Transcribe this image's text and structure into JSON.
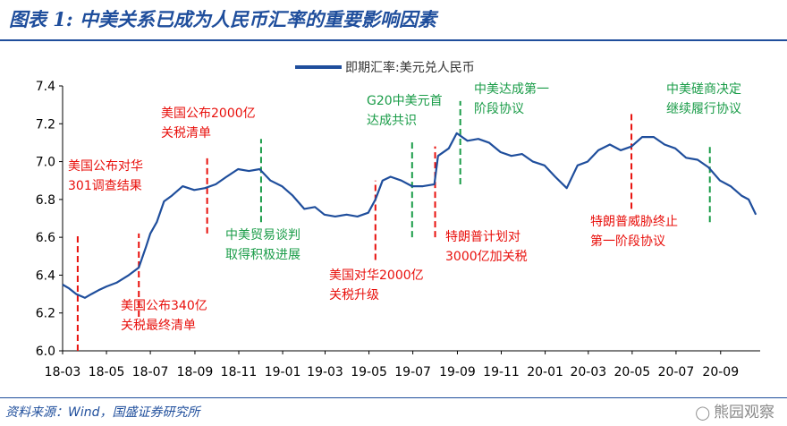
{
  "title": "图表 1:  中美关系已成为人民币汇率的重要影响因素",
  "source": "资料来源：Wind，国盛证券研究所",
  "watermark": "熊园观察",
  "colors": {
    "line": "#1f4e9c",
    "red": "#e8100c",
    "green": "#1a9c48",
    "title": "#1f4e9c"
  },
  "chart_data": {
    "type": "line",
    "legend": "即期汇率:美元兑人民币",
    "legend_position": "top-center",
    "grid": false,
    "ylim": [
      6.0,
      7.4
    ],
    "yticks": [
      "6.0",
      "6.2",
      "6.4",
      "6.6",
      "6.8",
      "7.0",
      "7.2",
      "7.4"
    ],
    "xticks": [
      "18-03",
      "18-05",
      "18-07",
      "18-09",
      "18-11",
      "19-01",
      "19-03",
      "19-05",
      "19-07",
      "19-09",
      "19-11",
      "20-01",
      "20-03",
      "20-05",
      "20-07",
      "20-09"
    ],
    "series": [
      {
        "name": "即期汇率:美元兑人民币",
        "x": [
          "2018-03-01",
          "2018-03-10",
          "2018-03-20",
          "2018-04-01",
          "2018-04-10",
          "2018-04-20",
          "2018-05-01",
          "2018-05-15",
          "2018-06-01",
          "2018-06-15",
          "2018-06-25",
          "2018-07-01",
          "2018-07-10",
          "2018-07-20",
          "2018-07-31",
          "2018-08-15",
          "2018-08-31",
          "2018-09-15",
          "2018-09-30",
          "2018-10-15",
          "2018-10-31",
          "2018-11-15",
          "2018-11-30",
          "2018-12-15",
          "2018-12-31",
          "2019-01-15",
          "2019-01-31",
          "2019-02-15",
          "2019-02-28",
          "2019-03-15",
          "2019-03-31",
          "2019-04-15",
          "2019-04-30",
          "2019-05-10",
          "2019-05-20",
          "2019-05-31",
          "2019-06-15",
          "2019-06-30",
          "2019-07-15",
          "2019-07-31",
          "2019-08-05",
          "2019-08-20",
          "2019-08-31",
          "2019-09-15",
          "2019-09-30",
          "2019-10-15",
          "2019-10-31",
          "2019-11-15",
          "2019-11-30",
          "2019-12-15",
          "2019-12-31",
          "2020-01-15",
          "2020-01-31",
          "2020-02-15",
          "2020-02-29",
          "2020-03-15",
          "2020-03-31",
          "2020-04-15",
          "2020-04-30",
          "2020-05-15",
          "2020-05-31",
          "2020-06-15",
          "2020-06-30",
          "2020-07-15",
          "2020-07-31",
          "2020-08-15",
          "2020-08-31",
          "2020-09-15",
          "2020-09-30",
          "2020-10-10",
          "2020-10-20"
        ],
        "values": [
          6.35,
          6.33,
          6.3,
          6.28,
          6.3,
          6.32,
          6.34,
          6.36,
          6.4,
          6.44,
          6.55,
          6.62,
          6.68,
          6.79,
          6.82,
          6.87,
          6.85,
          6.86,
          6.88,
          6.92,
          6.96,
          6.95,
          6.96,
          6.9,
          6.87,
          6.82,
          6.75,
          6.76,
          6.72,
          6.71,
          6.72,
          6.71,
          6.73,
          6.8,
          6.9,
          6.92,
          6.9,
          6.87,
          6.87,
          6.88,
          7.03,
          7.07,
          7.15,
          7.11,
          7.12,
          7.1,
          7.05,
          7.03,
          7.04,
          7.0,
          6.98,
          6.92,
          6.86,
          6.98,
          7.0,
          7.06,
          7.09,
          7.06,
          7.08,
          7.13,
          7.13,
          7.09,
          7.07,
          7.02,
          7.01,
          6.97,
          6.9,
          6.87,
          6.82,
          6.8,
          6.72
        ]
      }
    ],
    "annotations": [
      {
        "date": "2018-03-22",
        "color": "red",
        "lines": [
          "美国公布对华",
          "301调查结果"
        ],
        "y_start": 6.0,
        "y_end": 6.62
      },
      {
        "date": "2018-06-15",
        "color": "red",
        "lines": [
          "美国公布340亿",
          "关税最终清单"
        ],
        "y_start": 6.18,
        "y_end": 6.62
      },
      {
        "date": "2018-09-18",
        "color": "red",
        "lines": [
          "美国公布2000亿",
          "关税清单"
        ],
        "y_start": 6.62,
        "y_end": 7.02
      },
      {
        "date": "2018-12-02",
        "color": "green",
        "lines": [
          "中美贸易谈判",
          "取得积极进展"
        ],
        "y_start": 6.68,
        "y_end": 7.12
      },
      {
        "date": "2019-05-10",
        "color": "red",
        "lines": [
          "美国对华2000亿",
          "关税升级"
        ],
        "y_start": 6.48,
        "y_end": 6.9
      },
      {
        "date": "2019-06-30",
        "color": "green",
        "lines": [
          "G20中美元首",
          "达成共识"
        ],
        "y_start": 6.6,
        "y_end": 7.12
      },
      {
        "date": "2019-08-01",
        "color": "red",
        "lines": [
          "特朗普计划对",
          "3000亿加关税"
        ],
        "y_start": 6.6,
        "y_end": 7.08
      },
      {
        "date": "2019-09-05",
        "color": "green",
        "lines": [
          "中美达成第一",
          "阶段协议"
        ],
        "y_start": 6.88,
        "y_end": 7.32
      },
      {
        "date": "2020-04-30",
        "color": "red",
        "lines": [
          "特朗普威胁终止",
          "第一阶段协议"
        ],
        "y_start": 6.75,
        "y_end": 7.27
      },
      {
        "date": "2020-08-17",
        "color": "green",
        "lines": [
          "中美磋商决定",
          "继续履行协议"
        ],
        "y_start": 6.68,
        "y_end": 7.08
      }
    ]
  }
}
